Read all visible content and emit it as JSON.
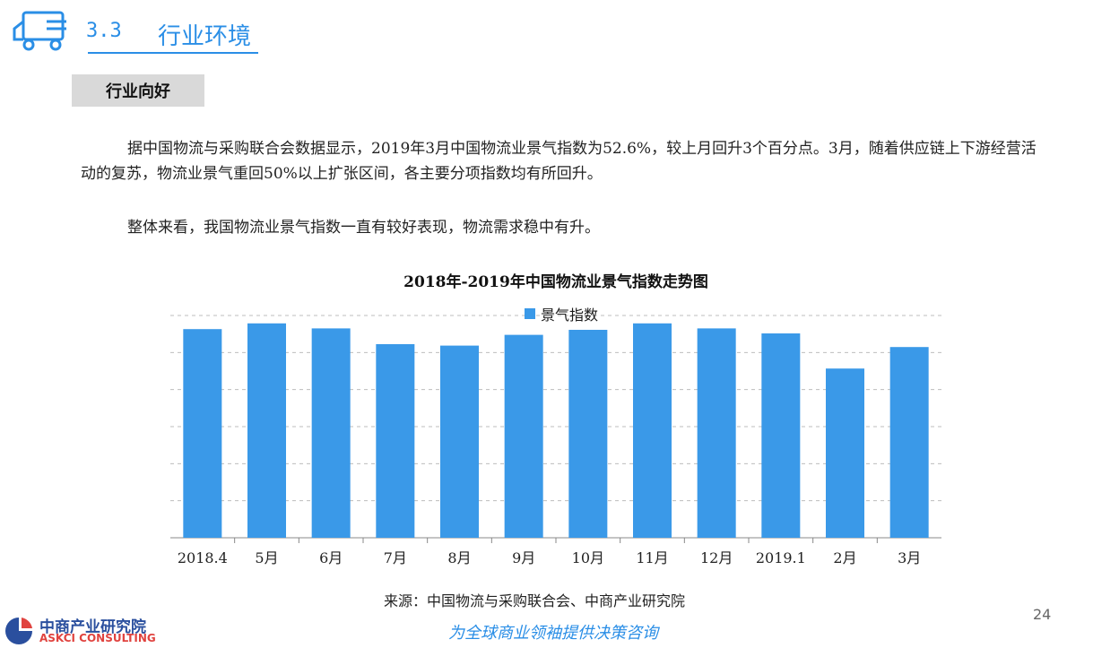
{
  "header": {
    "section_number": "3.3",
    "section_title": "行业环境"
  },
  "tag": "行业向好",
  "paragraphs": [
    "据中国物流与采购联合会数据显示，2019年3月中国物流业景气指数为52.6%，较上月回升3个百分点。3月，随着供应链上下游经营活动的复苏，物流业景气重回50%以上扩张区间，各主要分项指数均有所回升。",
    "整体来看，我国物流业景气指数一直有较好表现，物流需求稳中有升。"
  ],
  "chart_data": {
    "type": "bar",
    "title": "2018年-2019年中国物流业景气指数走势图",
    "categories": [
      "2018.4",
      "5月",
      "6月",
      "7月",
      "8月",
      "9月",
      "10月",
      "11月",
      "12月",
      "2019.1",
      "2月",
      "3月"
    ],
    "series": [
      {
        "name": "景气指数",
        "values": [
          55.1,
          55.9,
          55.2,
          53.0,
          52.8,
          54.3,
          55.0,
          55.9,
          55.2,
          54.5,
          49.6,
          52.6
        ]
      }
    ],
    "ylim": [
      26,
      57
    ],
    "grid": true,
    "legend": "top-center",
    "colors": {
      "bar": "#3a99e8"
    }
  },
  "source": "来源：中国物流与采购联合会、中商产业研究院",
  "page_number": "24",
  "slogan": "为全球商业领袖提供决策咨询",
  "brand": {
    "name_cn": "中商产业研究院",
    "name_en": "ASKCI CONSULTING"
  }
}
